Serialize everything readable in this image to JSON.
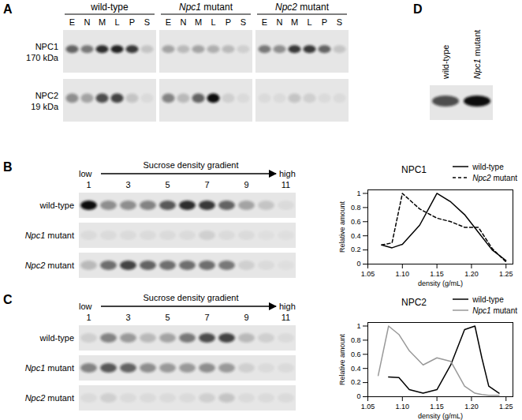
{
  "chart_data": [
    {
      "type": "line",
      "title": "NPC1",
      "xlabel": "density (g/mL)",
      "ylabel": "Relative amount",
      "x": [
        1.07,
        1.085,
        1.1,
        1.125,
        1.15,
        1.17,
        1.19,
        1.21,
        1.23,
        1.25
      ],
      "series": [
        {
          "name": "wild-type",
          "color": "#000000",
          "line_style": "solid",
          "values": [
            0.27,
            0.23,
            0.28,
            0.55,
            1.0,
            0.88,
            0.7,
            0.45,
            0.2,
            0.05
          ]
        },
        {
          "name": "Npc2 mutant",
          "color": "#000000",
          "line_style": "dashed",
          "values": [
            0.27,
            0.3,
            1.0,
            0.78,
            0.65,
            0.6,
            0.52,
            0.52,
            0.22,
            0.03
          ]
        }
      ],
      "xlim": [
        1.05,
        1.26
      ],
      "ylim": [
        0,
        1.05
      ],
      "xticks": [
        1.05,
        {
          "value": 1.1,
          "label": "1.10"
        },
        1.15,
        {
          "value": 1.2,
          "label": "1.20"
        },
        1.25
      ],
      "yticks": [
        0,
        0.2,
        0.4,
        0.6,
        0.8,
        1
      ],
      "legend": "top-right"
    },
    {
      "type": "line",
      "title": "NPC2",
      "xlabel": "density (g/mL)",
      "ylabel": "Relative amount",
      "x": [
        1.065,
        1.08,
        1.095,
        1.11,
        1.13,
        1.15,
        1.17,
        1.19,
        1.205,
        1.215,
        1.225,
        1.24
      ],
      "series": [
        {
          "name": "wild-type",
          "color": "#000000",
          "line_style": "solid",
          "values": [
            null,
            0.28,
            0.27,
            0.1,
            0.05,
            0.1,
            0.45,
            0.95,
            1.0,
            0.55,
            0.15,
            0.05
          ]
        },
        {
          "name": "Npc1 mutant",
          "color": "#999999",
          "line_style": "solid",
          "values": [
            0.3,
            1.0,
            0.88,
            0.65,
            0.45,
            0.55,
            0.5,
            0.15,
            0.05,
            0.03,
            0.02,
            0.02
          ]
        }
      ],
      "xlim": [
        1.05,
        1.26
      ],
      "ylim": [
        0,
        1.05
      ],
      "xticks": [
        1.05,
        {
          "value": 1.1,
          "label": "1.10"
        },
        1.15,
        {
          "value": 1.2,
          "label": "1.20"
        },
        1.25
      ],
      "yticks": [
        0,
        0.2,
        0.4,
        0.6,
        0.8,
        1
      ],
      "legend": "top-right"
    }
  ],
  "panels": [
    {
      "label": "A",
      "groups": [
        "wild-type",
        "Npc1 mutant",
        "Npc2 mutant"
      ],
      "lanes": [
        "E",
        "N",
        "M",
        "L",
        "P",
        "S"
      ],
      "rows": [
        {
          "name": "NPC1",
          "size": "170 kDa",
          "intensity": [
            0.6,
            0.5,
            0.85,
            0.9,
            0.8,
            0.15,
            0.3,
            0.2,
            0.3,
            0.25,
            0.2,
            0.1,
            0.5,
            0.4,
            0.8,
            0.8,
            0.6,
            0.15
          ]
        },
        {
          "name": "NPC2",
          "size": "19 kDa",
          "intensity": [
            0.4,
            0.3,
            0.7,
            0.75,
            0.15,
            0.05,
            0.45,
            0.2,
            0.6,
            1.0,
            0.1,
            0.05,
            0.05,
            0.05,
            0.15,
            0.1,
            0.05,
            0.05
          ]
        }
      ]
    },
    {
      "label": "B",
      "gradient": {
        "title": "Sucrose density gradient",
        "start": "low",
        "end": "high"
      },
      "lanes": [
        1,
        null,
        3,
        null,
        5,
        null,
        7,
        null,
        9,
        null,
        11
      ],
      "rows": [
        {
          "name": "wild-type",
          "intensity": [
            1.0,
            0.4,
            0.4,
            0.45,
            0.65,
            0.85,
            0.8,
            0.6,
            0.3,
            0.15,
            0.05
          ]
        },
        {
          "name": "Npc1 mutant",
          "intensity": [
            0.05,
            0.05,
            0.05,
            0.05,
            0.05,
            0.05,
            0.1,
            0.05,
            0.05,
            0.03,
            0.03
          ]
        },
        {
          "name": "Npc2 mutant",
          "intensity": [
            0.2,
            0.55,
            0.75,
            0.6,
            0.55,
            0.55,
            0.55,
            0.5,
            0.1,
            0.05,
            0.03
          ]
        }
      ]
    },
    {
      "label": "C",
      "gradient": {
        "title": "Sucrose density gradient",
        "start": "low",
        "end": "high"
      },
      "lanes": [
        1,
        null,
        3,
        null,
        5,
        null,
        7,
        null,
        9,
        null,
        11
      ],
      "rows": [
        {
          "name": "wild-type",
          "intensity": [
            0.1,
            0.45,
            0.35,
            0.2,
            0.3,
            0.5,
            0.7,
            0.75,
            0.2,
            0.1,
            0.05
          ]
        },
        {
          "name": "Npc1 mutant",
          "intensity": [
            0.45,
            0.65,
            0.6,
            0.4,
            0.35,
            0.35,
            0.4,
            0.35,
            0.1,
            0.05,
            0.05
          ]
        },
        {
          "name": "Npc2 mutant",
          "intensity": [
            0.05,
            0.1,
            0.05,
            0.05,
            0.05,
            0.05,
            0.1,
            0.15,
            0.05,
            0.05,
            0.05
          ]
        }
      ]
    },
    {
      "label": "D",
      "lanes": [
        "wild-type",
        "Npc1 mutant"
      ],
      "intensity": [
        0.7,
        1.0
      ]
    }
  ]
}
